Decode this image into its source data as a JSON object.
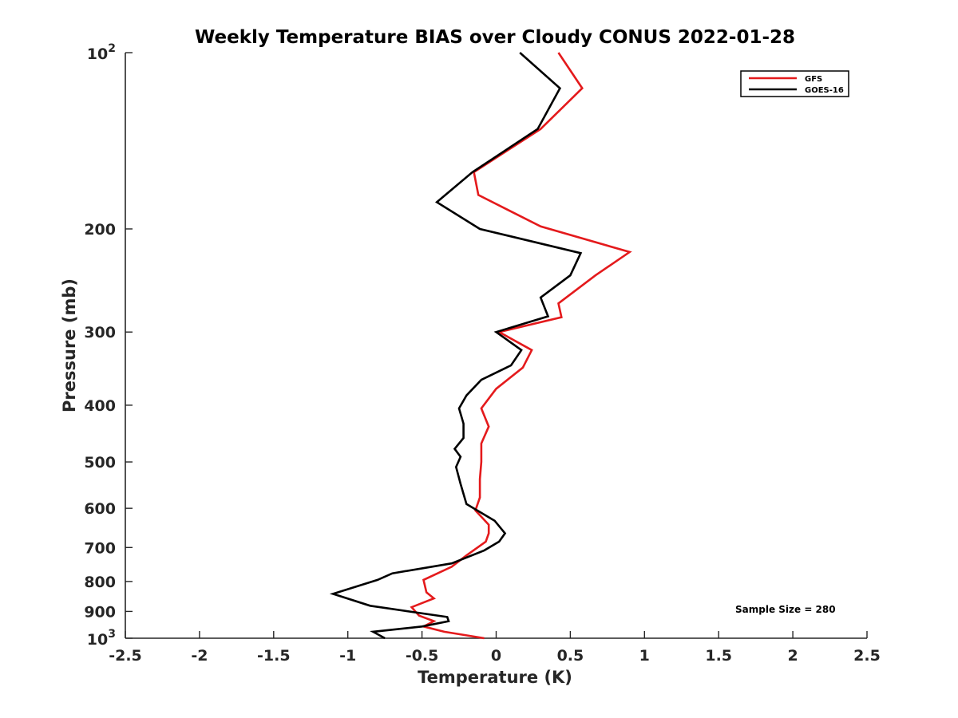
{
  "chart_data": {
    "type": "line",
    "title": "Weekly Temperature BIAS over Cloudy CONUS 2022-01-28",
    "xlabel": "Temperature (K)",
    "ylabel": "Pressure (mb)",
    "xlim": [
      -2.5,
      2.5
    ],
    "ylim": [
      100,
      1000
    ],
    "y_scale": "log",
    "y_reversed": true,
    "grid": false,
    "legend_position": "top-right",
    "x_ticks": [
      "-2.5",
      "-2",
      "-1.5",
      "-1",
      "-0.5",
      "0",
      "0.5",
      "1",
      "1.5",
      "2",
      "2.5"
    ],
    "x_tick_values": [
      -2.5,
      -2,
      -1.5,
      -1,
      -0.5,
      0,
      0.5,
      1,
      1.5,
      2,
      2.5
    ],
    "y_ticks": [
      {
        "value": 100,
        "base": "10",
        "exp": "2"
      },
      {
        "value": 200,
        "label": "200"
      },
      {
        "value": 300,
        "label": "300"
      },
      {
        "value": 400,
        "label": "400"
      },
      {
        "value": 500,
        "label": "500"
      },
      {
        "value": 600,
        "label": "600"
      },
      {
        "value": 700,
        "label": "700"
      },
      {
        "value": 800,
        "label": "800"
      },
      {
        "value": 900,
        "label": "900"
      },
      {
        "value": 1000,
        "base": "10",
        "exp": "3"
      }
    ],
    "series": [
      {
        "name": "GFS",
        "color": "#e41a1c",
        "points": [
          [
            0.42,
            100
          ],
          [
            0.58,
            115
          ],
          [
            0.3,
            135
          ],
          [
            -0.15,
            160
          ],
          [
            -0.12,
            175
          ],
          [
            0.3,
            198
          ],
          [
            0.9,
            219
          ],
          [
            0.67,
            240
          ],
          [
            0.42,
            268
          ],
          [
            0.44,
            283
          ],
          [
            0.02,
            300
          ],
          [
            0.24,
            322
          ],
          [
            0.18,
            345
          ],
          [
            0.0,
            375
          ],
          [
            -0.1,
            405
          ],
          [
            -0.05,
            435
          ],
          [
            -0.1,
            465
          ],
          [
            -0.1,
            500
          ],
          [
            -0.11,
            535
          ],
          [
            -0.11,
            575
          ],
          [
            -0.14,
            605
          ],
          [
            -0.05,
            640
          ],
          [
            -0.05,
            662
          ],
          [
            -0.07,
            684
          ],
          [
            -0.2,
            722
          ],
          [
            -0.3,
            755
          ],
          [
            -0.49,
            795
          ],
          [
            -0.47,
            835
          ],
          [
            -0.42,
            855
          ],
          [
            -0.57,
            885
          ],
          [
            -0.52,
            915
          ],
          [
            -0.42,
            935
          ],
          [
            -0.49,
            955
          ],
          [
            -0.35,
            975
          ],
          [
            -0.08,
            1000
          ]
        ]
      },
      {
        "name": "GOES-16",
        "color": "#000000",
        "points": [
          [
            0.16,
            100
          ],
          [
            0.43,
            115
          ],
          [
            0.28,
            135
          ],
          [
            -0.16,
            160
          ],
          [
            -0.4,
            180
          ],
          [
            -0.11,
            200
          ],
          [
            0.57,
            220
          ],
          [
            0.5,
            240
          ],
          [
            0.3,
            262
          ],
          [
            0.35,
            282
          ],
          [
            0.0,
            300
          ],
          [
            0.17,
            322
          ],
          [
            0.1,
            342
          ],
          [
            -0.1,
            362
          ],
          [
            -0.2,
            385
          ],
          [
            -0.25,
            405
          ],
          [
            -0.22,
            430
          ],
          [
            -0.22,
            455
          ],
          [
            -0.28,
            475
          ],
          [
            -0.24,
            490
          ],
          [
            -0.27,
            510
          ],
          [
            -0.24,
            545
          ],
          [
            -0.2,
            590
          ],
          [
            -0.01,
            630
          ],
          [
            0.06,
            662
          ],
          [
            0.02,
            684
          ],
          [
            -0.08,
            708
          ],
          [
            -0.3,
            745
          ],
          [
            -0.7,
            775
          ],
          [
            -0.8,
            795
          ],
          [
            -1.1,
            840
          ],
          [
            -0.85,
            880
          ],
          [
            -0.33,
            920
          ],
          [
            -0.32,
            935
          ],
          [
            -0.5,
            955
          ],
          [
            -0.83,
            975
          ],
          [
            -0.75,
            1000
          ]
        ]
      }
    ],
    "annotations": [
      {
        "text": "Sample Size = 280",
        "x": 1.95,
        "y": 905
      }
    ]
  }
}
